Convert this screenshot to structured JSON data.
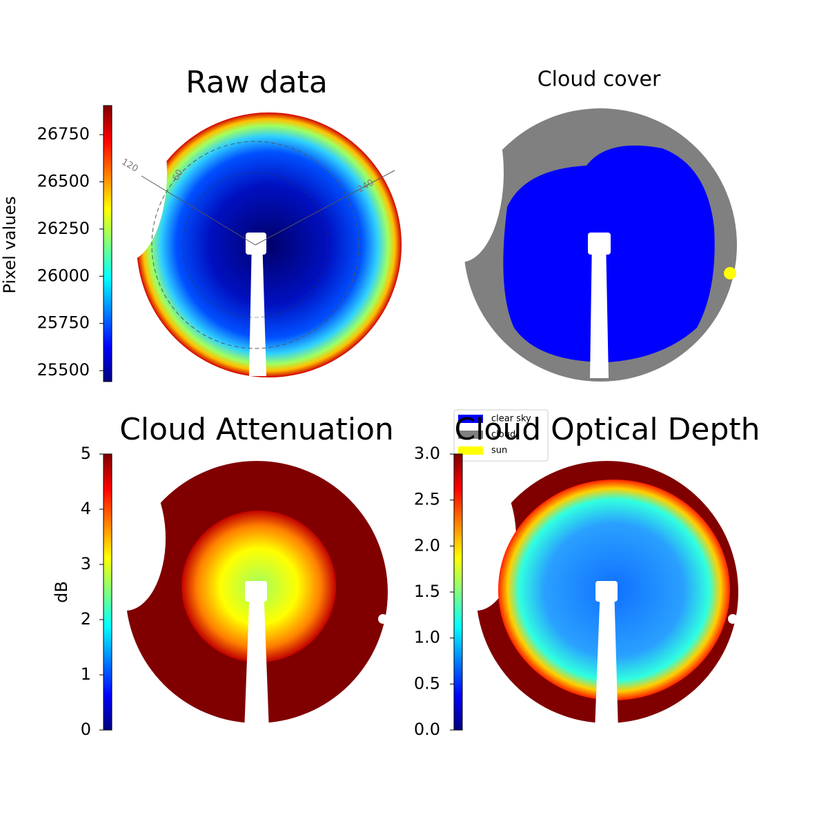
{
  "chart_data": [
    {
      "type": "heatmap",
      "title": "Raw data",
      "colorbar_label": "Pixel values",
      "colormap": "jet",
      "ylim": [
        25442,
        26904
      ],
      "yticks": [
        25500,
        25750,
        26000,
        26250,
        26500,
        26750
      ],
      "annotations": [
        "120",
        "60",
        "240"
      ]
    },
    {
      "type": "category_map",
      "title": "Cloud cover",
      "categories": [
        "clear sky",
        "cloud",
        "sun"
      ],
      "colors": [
        "#0000ff",
        "#808080",
        "#ffff00"
      ]
    },
    {
      "type": "heatmap",
      "title": "Cloud Attenuation",
      "colorbar_label": "dB",
      "colormap": "jet",
      "ylim": [
        0,
        5
      ],
      "yticks": [
        0,
        1,
        2,
        3,
        4,
        5
      ]
    },
    {
      "type": "heatmap",
      "title": "Cloud Optical Depth",
      "colormap": "jet",
      "ylim": [
        0,
        3
      ],
      "yticks": [
        {
          "value": 0,
          "label": "0.0"
        },
        {
          "value": 0.5,
          "label": "0.5"
        },
        {
          "value": 1,
          "label": "1.0"
        },
        {
          "value": 1.5,
          "label": "1.5"
        },
        {
          "value": 2,
          "label": "2.0"
        },
        {
          "value": 2.5,
          "label": "2.5"
        },
        {
          "value": 3,
          "label": "3.0"
        }
      ]
    }
  ]
}
